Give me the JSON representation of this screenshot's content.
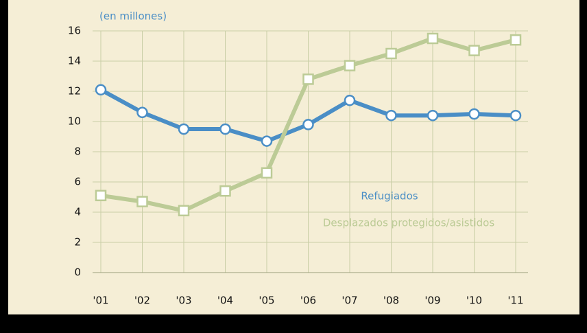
{
  "chart_data": {
    "type": "line",
    "subtitle": "(en millones)",
    "x": [
      "'01",
      "'02",
      "'03",
      "'04",
      "'05",
      "'06",
      "'07",
      "'08",
      "'09",
      "'10",
      "'11"
    ],
    "series": [
      {
        "name": "Refugiados",
        "color": "#4a8ec6",
        "marker": "circle",
        "values": [
          12.1,
          10.6,
          9.5,
          9.5,
          8.7,
          9.8,
          11.4,
          10.4,
          10.4,
          10.5,
          10.4
        ]
      },
      {
        "name": "Desplazados protegidos/asistidos",
        "color": "#bccb96",
        "marker": "square",
        "values": [
          5.1,
          4.7,
          4.1,
          5.4,
          6.6,
          12.8,
          13.7,
          14.5,
          15.5,
          14.7,
          15.4
        ]
      }
    ],
    "ylim": [
      0,
      16
    ],
    "yticks": [
      0,
      2,
      4,
      6,
      8,
      10,
      12,
      14,
      16
    ],
    "grid": true
  }
}
